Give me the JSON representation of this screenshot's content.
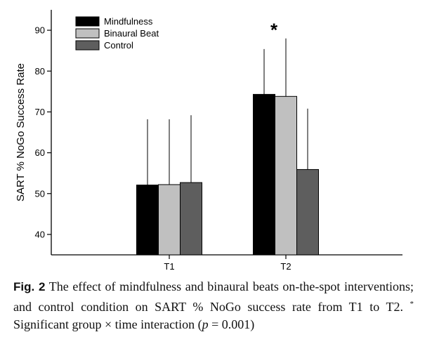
{
  "chart_data": {
    "type": "bar",
    "title": "",
    "xlabel": "",
    "ylabel": "SART % NoGo Success Rate",
    "ylim": [
      35,
      95
    ],
    "yticks": [
      40,
      50,
      60,
      70,
      80,
      90
    ],
    "categories": [
      "T1",
      "T2"
    ],
    "legend_position": "top-left",
    "grid": false,
    "series": [
      {
        "name": "Mindfulness",
        "color": "#000000",
        "values": [
          52.1,
          74.3
        ],
        "error_upper": [
          68.2,
          85.4
        ]
      },
      {
        "name": "Binaural Beat",
        "color": "#c0c0c0",
        "values": [
          52.2,
          73.8
        ],
        "error_upper": [
          68.2,
          88.0
        ]
      },
      {
        "name": "Control",
        "color": "#5e5e5e",
        "values": [
          52.7,
          55.9
        ],
        "error_upper": [
          69.2,
          70.8
        ]
      }
    ],
    "annotations": [
      {
        "text": "*",
        "category": "T2"
      }
    ]
  },
  "caption": {
    "fig_label": "Fig. 2",
    "text_main": " The effect of mindfulness and binaural beats on-the-spot interventions; and control condition on SART % NoGo success rate from T1 to T2. ",
    "sup": "*",
    "text_tail": " Significant group × time interaction (",
    "p_symbol": "p",
    "p_value": " = 0.001)"
  }
}
